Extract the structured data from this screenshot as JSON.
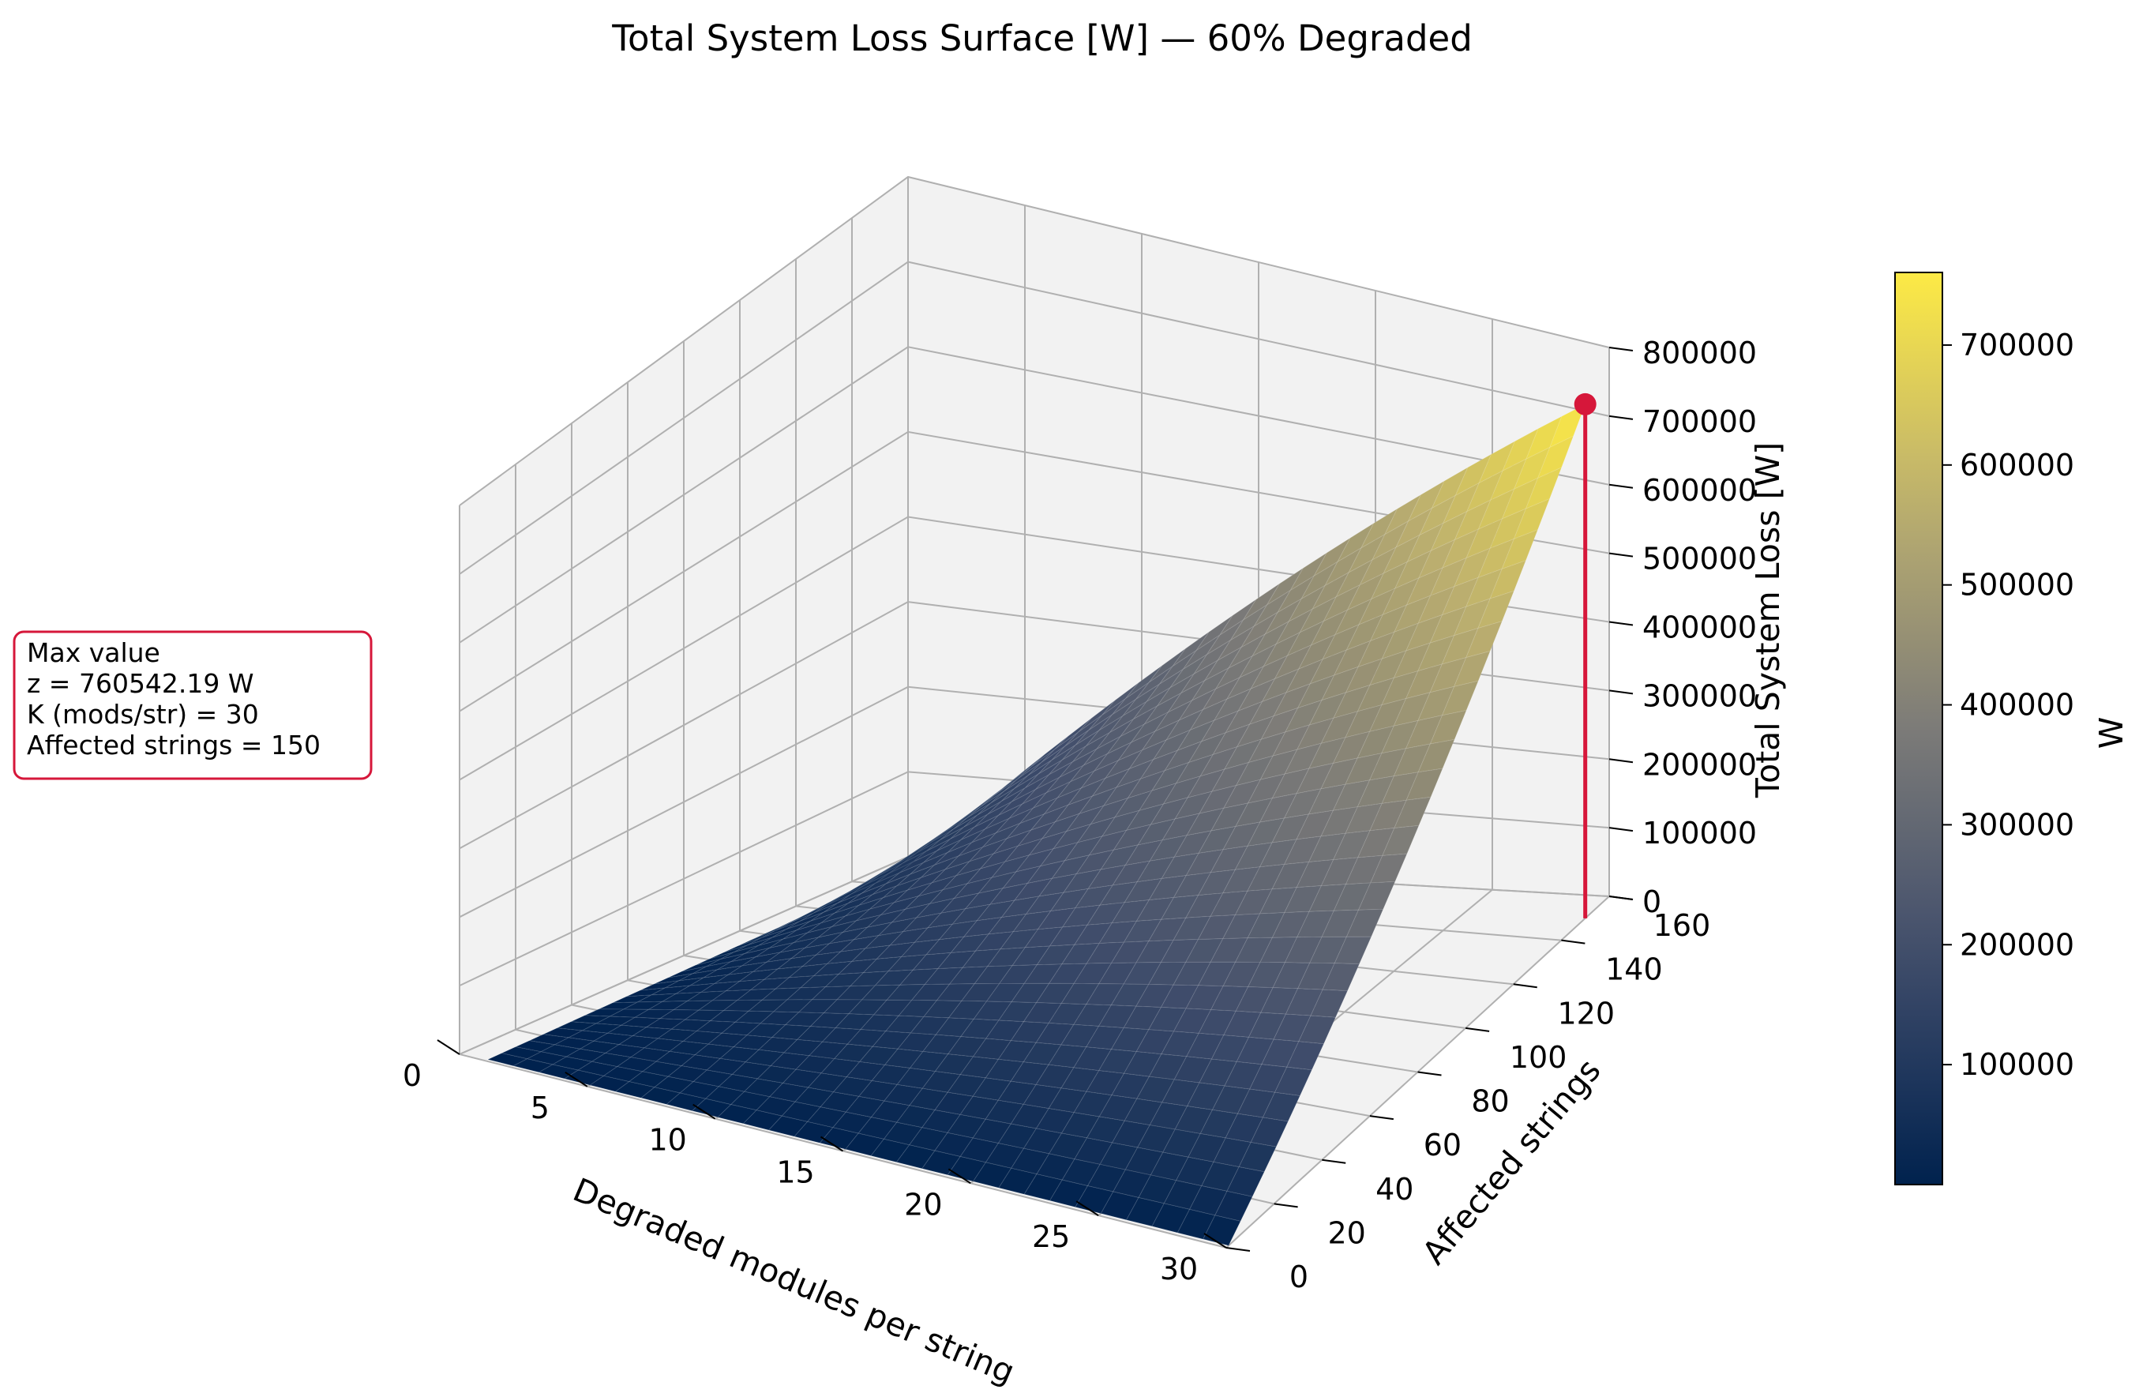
{
  "chart_data": {
    "type": "surface3d",
    "title": "Total System Loss Surface [W] — 60% Degraded",
    "xlabel": "Degraded modules per string",
    "ylabel": "Affected strings",
    "zlabel": "Total System Loss [W]",
    "colorbar_label": "W",
    "colormap": "cividis",
    "xlim": [
      0,
      30
    ],
    "ylim": [
      0,
      160
    ],
    "zlim": [
      0,
      800000
    ],
    "x_ticks": [
      "0",
      "5",
      "10",
      "15",
      "20",
      "25",
      "30"
    ],
    "y_ticks": [
      "0",
      "20",
      "40",
      "60",
      "80",
      "100",
      "120",
      "140",
      "160"
    ],
    "z_ticks": [
      "0",
      "100000",
      "200000",
      "300000",
      "400000",
      "500000",
      "600000",
      "700000",
      "800000"
    ],
    "colorbar_ticks": [
      "100000",
      "200000",
      "300000",
      "400000",
      "500000",
      "600000",
      "700000"
    ],
    "colorbar_range": [
      0,
      760542.19
    ],
    "surface": {
      "x_range": [
        1,
        30
      ],
      "y_range": [
        1,
        150
      ],
      "z_corners": {
        "x1_y1": 0,
        "x1_y150": 0,
        "x30_y1": 0,
        "x30_y150": 760542.19
      }
    },
    "max_point": {
      "x": 30,
      "y": 150,
      "z": 760542.19
    },
    "annotation": {
      "lines": [
        "Max value",
        "z = 760542.19 W",
        "K (mods/str) = 30",
        "Affected strings = 150"
      ]
    },
    "grid": true,
    "colors": {
      "marker": "#d6173a",
      "annotation_border": "#d6173a"
    }
  }
}
